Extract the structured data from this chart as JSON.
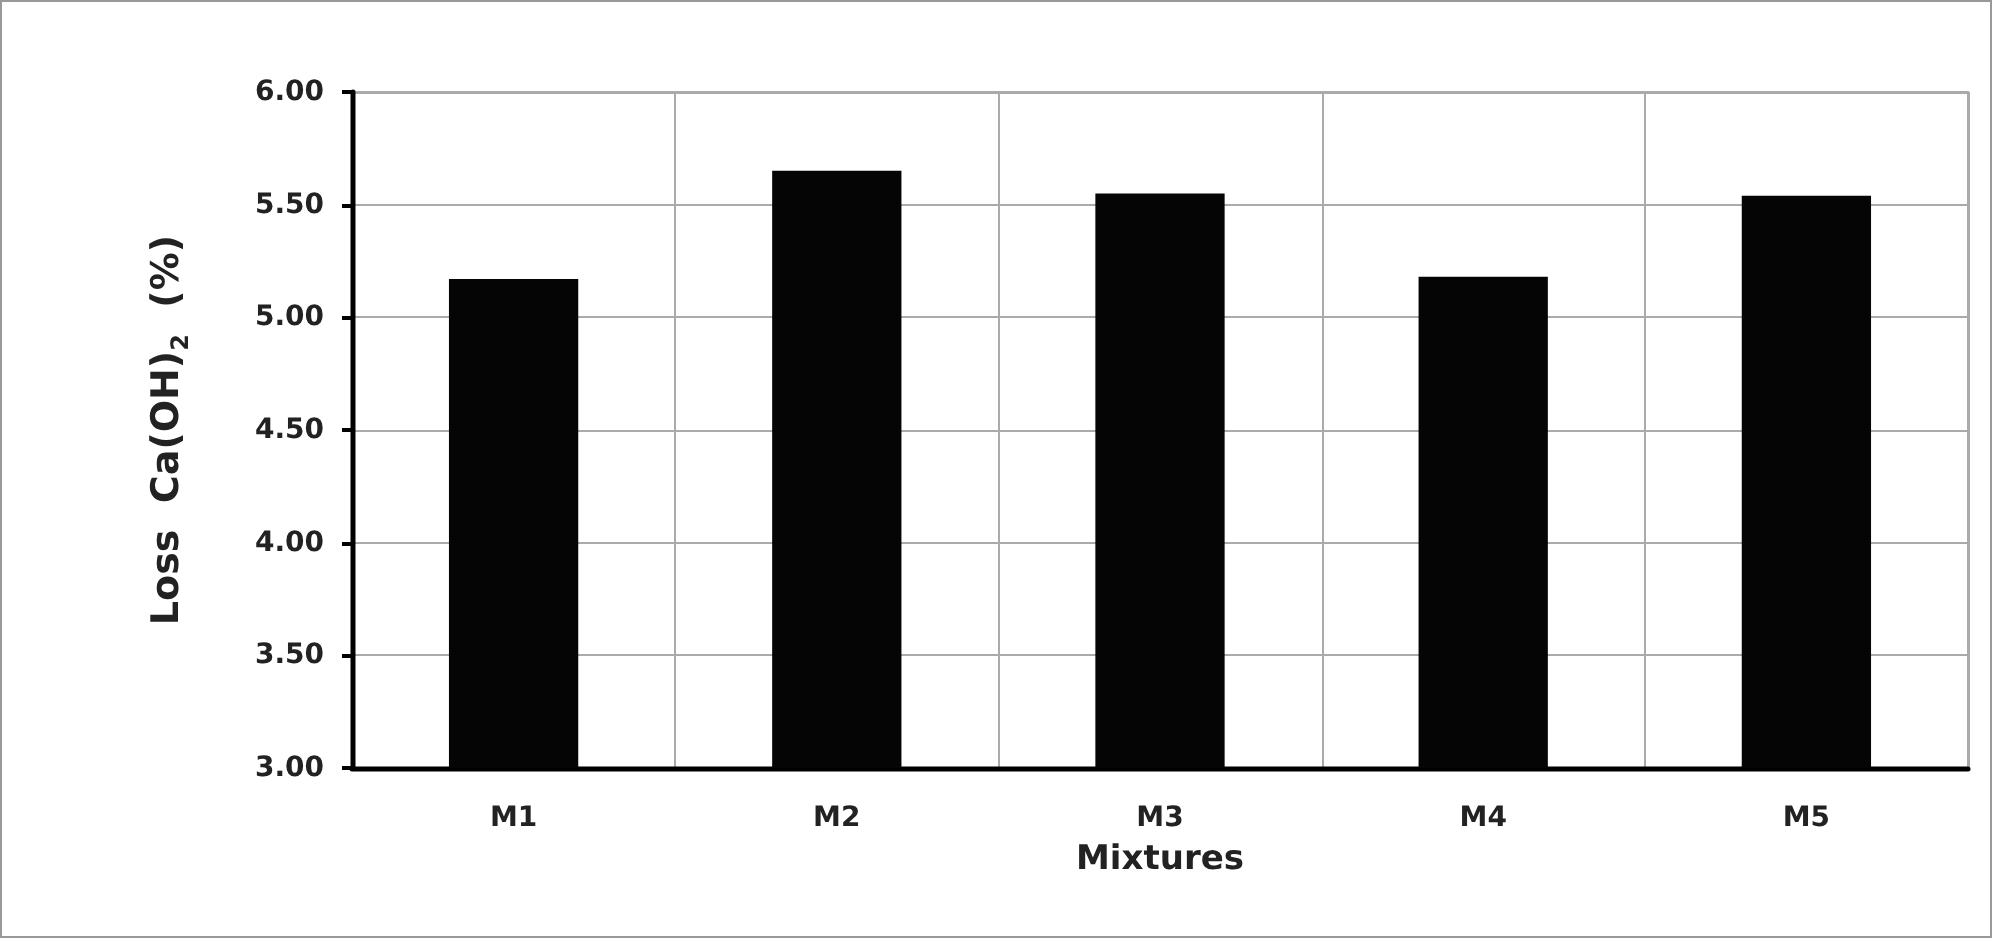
{
  "chart_data": {
    "type": "bar",
    "xlabel": "Mixtures",
    "ylabel": "Loss  Ca(OH)$_{2}$  (%)",
    "categories": [
      "M1",
      "M2",
      "M3",
      "M4",
      "M5"
    ],
    "values": [
      5.17,
      5.65,
      5.55,
      5.18,
      5.54
    ],
    "color": "#050505",
    "ylim": [
      3,
      6
    ],
    "yticks": [
      {
        "value": 3,
        "label": "3.00"
      },
      {
        "value": 3.5,
        "label": "3.50"
      },
      {
        "value": 4,
        "label": "4.00"
      },
      {
        "value": 4.5,
        "label": "4.50"
      },
      {
        "value": 5,
        "label": "5.00"
      },
      {
        "value": 5.5,
        "label": "5.50"
      },
      {
        "value": 6,
        "label": "6.00"
      }
    ],
    "grid": true
  }
}
